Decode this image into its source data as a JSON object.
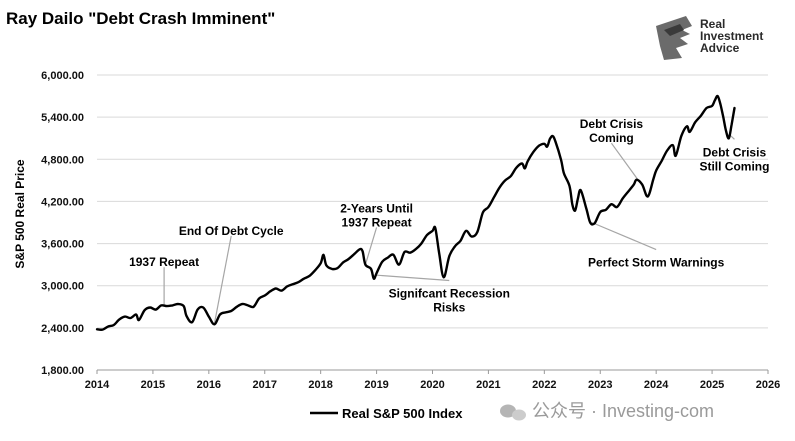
{
  "chart_data": {
    "type": "line",
    "title": "Ray Dailo \"Debt Crash Imminent\"",
    "ylabel": "S&P 500 Real Price",
    "xlabel": "",
    "ylim": [
      1800,
      6000
    ],
    "y_ticks": [
      "6,000.00",
      "5,400.00",
      "4,800.00",
      "4,200.00",
      "3,600.00",
      "3,000.00",
      "2,400.00",
      "1,800.00"
    ],
    "y_tick_values": [
      6000,
      5400,
      4800,
      4200,
      3600,
      3000,
      2400,
      1800
    ],
    "xlim": [
      2014,
      2026
    ],
    "x_ticks": [
      "2014",
      "2015",
      "2016",
      "2017",
      "2018",
      "2019",
      "2020",
      "2021",
      "2022",
      "2023",
      "2024",
      "2025",
      "2026"
    ],
    "x_tick_values": [
      2014,
      2015,
      2016,
      2017,
      2018,
      2019,
      2020,
      2021,
      2022,
      2023,
      2024,
      2025,
      2026
    ],
    "grid": true,
    "legend_position": "bottom-center",
    "series": [
      {
        "name": "Real S&P 500 Index",
        "color": "#000000",
        "points": [
          [
            2014.0,
            2380
          ],
          [
            2014.1,
            2375
          ],
          [
            2014.2,
            2420
          ],
          [
            2014.3,
            2440
          ],
          [
            2014.4,
            2520
          ],
          [
            2014.5,
            2560
          ],
          [
            2014.6,
            2540
          ],
          [
            2014.7,
            2590
          ],
          [
            2014.75,
            2510
          ],
          [
            2014.85,
            2650
          ],
          [
            2014.95,
            2690
          ],
          [
            2015.05,
            2660
          ],
          [
            2015.15,
            2720
          ],
          [
            2015.25,
            2710
          ],
          [
            2015.35,
            2720
          ],
          [
            2015.45,
            2740
          ],
          [
            2015.55,
            2710
          ],
          [
            2015.6,
            2570
          ],
          [
            2015.7,
            2480
          ],
          [
            2015.8,
            2660
          ],
          [
            2015.9,
            2690
          ],
          [
            2016.0,
            2560
          ],
          [
            2016.1,
            2450
          ],
          [
            2016.2,
            2590
          ],
          [
            2016.3,
            2620
          ],
          [
            2016.4,
            2640
          ],
          [
            2016.5,
            2700
          ],
          [
            2016.6,
            2740
          ],
          [
            2016.7,
            2720
          ],
          [
            2016.8,
            2700
          ],
          [
            2016.9,
            2820
          ],
          [
            2017.0,
            2860
          ],
          [
            2017.1,
            2920
          ],
          [
            2017.2,
            2960
          ],
          [
            2017.3,
            2930
          ],
          [
            2017.4,
            2990
          ],
          [
            2017.5,
            3020
          ],
          [
            2017.6,
            3050
          ],
          [
            2017.7,
            3100
          ],
          [
            2017.8,
            3140
          ],
          [
            2017.9,
            3220
          ],
          [
            2018.0,
            3320
          ],
          [
            2018.05,
            3440
          ],
          [
            2018.1,
            3290
          ],
          [
            2018.2,
            3240
          ],
          [
            2018.3,
            3250
          ],
          [
            2018.4,
            3330
          ],
          [
            2018.5,
            3380
          ],
          [
            2018.6,
            3450
          ],
          [
            2018.7,
            3520
          ],
          [
            2018.75,
            3490
          ],
          [
            2018.8,
            3300
          ],
          [
            2018.9,
            3240
          ],
          [
            2018.95,
            3100
          ],
          [
            2019.0,
            3180
          ],
          [
            2019.1,
            3340
          ],
          [
            2019.2,
            3400
          ],
          [
            2019.3,
            3440
          ],
          [
            2019.4,
            3300
          ],
          [
            2019.5,
            3480
          ],
          [
            2019.6,
            3470
          ],
          [
            2019.7,
            3520
          ],
          [
            2019.8,
            3600
          ],
          [
            2019.9,
            3720
          ],
          [
            2020.0,
            3780
          ],
          [
            2020.05,
            3820
          ],
          [
            2020.12,
            3460
          ],
          [
            2020.2,
            3120
          ],
          [
            2020.3,
            3420
          ],
          [
            2020.4,
            3560
          ],
          [
            2020.5,
            3640
          ],
          [
            2020.6,
            3780
          ],
          [
            2020.7,
            3700
          ],
          [
            2020.8,
            3760
          ],
          [
            2020.9,
            4040
          ],
          [
            2021.0,
            4120
          ],
          [
            2021.1,
            4260
          ],
          [
            2021.2,
            4400
          ],
          [
            2021.3,
            4500
          ],
          [
            2021.4,
            4560
          ],
          [
            2021.5,
            4680
          ],
          [
            2021.6,
            4740
          ],
          [
            2021.65,
            4670
          ],
          [
            2021.7,
            4770
          ],
          [
            2021.8,
            4900
          ],
          [
            2021.9,
            4990
          ],
          [
            2022.0,
            5020
          ],
          [
            2022.05,
            4980
          ],
          [
            2022.1,
            5090
          ],
          [
            2022.15,
            5130
          ],
          [
            2022.2,
            5050
          ],
          [
            2022.3,
            4790
          ],
          [
            2022.35,
            4600
          ],
          [
            2022.45,
            4420
          ],
          [
            2022.5,
            4160
          ],
          [
            2022.55,
            4070
          ],
          [
            2022.6,
            4240
          ],
          [
            2022.65,
            4360
          ],
          [
            2022.75,
            4100
          ],
          [
            2022.82,
            3900
          ],
          [
            2022.9,
            3890
          ],
          [
            2023.0,
            4050
          ],
          [
            2023.1,
            4080
          ],
          [
            2023.2,
            4160
          ],
          [
            2023.3,
            4120
          ],
          [
            2023.4,
            4240
          ],
          [
            2023.5,
            4340
          ],
          [
            2023.6,
            4440
          ],
          [
            2023.65,
            4510
          ],
          [
            2023.75,
            4440
          ],
          [
            2023.85,
            4270
          ],
          [
            2023.95,
            4520
          ],
          [
            2024.0,
            4640
          ],
          [
            2024.1,
            4780
          ],
          [
            2024.2,
            4930
          ],
          [
            2024.3,
            5000
          ],
          [
            2024.35,
            4850
          ],
          [
            2024.45,
            5130
          ],
          [
            2024.55,
            5270
          ],
          [
            2024.6,
            5190
          ],
          [
            2024.7,
            5330
          ],
          [
            2024.8,
            5420
          ],
          [
            2024.9,
            5530
          ],
          [
            2025.0,
            5560
          ],
          [
            2025.05,
            5640
          ],
          [
            2025.1,
            5700
          ],
          [
            2025.15,
            5580
          ],
          [
            2025.2,
            5400
          ],
          [
            2025.25,
            5200
          ],
          [
            2025.3,
            5100
          ],
          [
            2025.35,
            5300
          ],
          [
            2025.4,
            5530
          ]
        ]
      }
    ],
    "annotations": [
      {
        "lines": [
          "1937 Repeat"
        ],
        "at": [
          2015.2,
          2700
        ],
        "text_pos": [
          2015.2,
          3335
        ]
      },
      {
        "lines": [
          "End Of Debt Cycle"
        ],
        "at": [
          2016.1,
          2460
        ],
        "text_pos": [
          2016.4,
          3780
        ]
      },
      {
        "lines": [
          "2-Years Until",
          "1937 Repeat"
        ],
        "at": [
          2018.8,
          3300
        ],
        "text_pos": [
          2019.0,
          4000
        ]
      },
      {
        "lines": [
          "Signifcant Recession",
          "Risks"
        ],
        "at": [
          2019.0,
          3150
        ],
        "text_pos": [
          2020.3,
          2790
        ]
      },
      {
        "lines": [
          "Debt Crisis",
          "Coming"
        ],
        "at": [
          2023.7,
          4480
        ],
        "text_pos": [
          2023.2,
          5200
        ]
      },
      {
        "lines": [
          "Debt Crisis",
          "Still Coming"
        ],
        "at": [
          2025.3,
          5160
        ],
        "text_pos": [
          2025.4,
          4800
        ]
      },
      {
        "lines": [
          "Perfect Storm Warnings"
        ],
        "at": [
          2022.85,
          3900
        ],
        "text_pos": [
          2024.0,
          3330
        ]
      }
    ]
  },
  "branding": {
    "logo_line1": "Real",
    "logo_line2": "Investment",
    "logo_line3": "Advice",
    "watermark": "公众号 · Investing-com"
  }
}
